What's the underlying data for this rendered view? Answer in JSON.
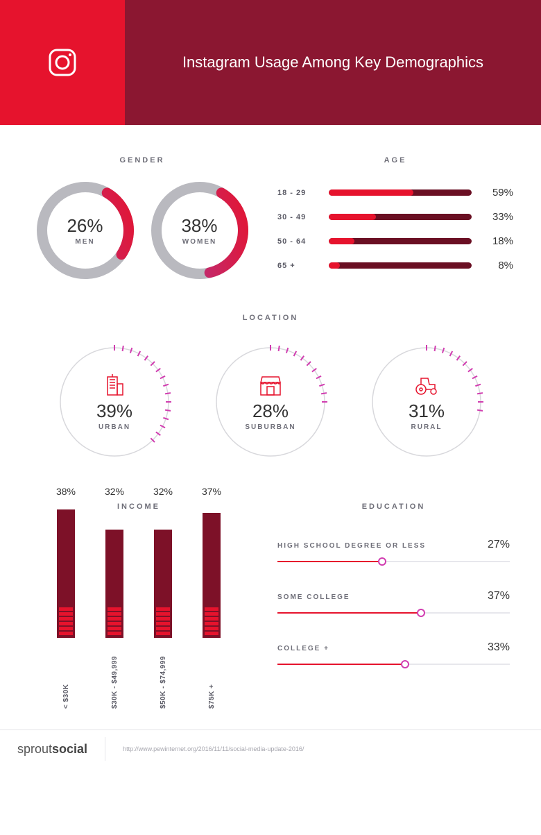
{
  "colors": {
    "header_icon_bg": "#e6132d",
    "header_title_bg": "#8b1731",
    "accent_red": "#e6132d",
    "accent_dark": "#6a0f23",
    "accent_pink": "#d13db0",
    "ring_track": "#b9b9bf",
    "loc_ring": "#d8d8dc",
    "text_muted": "#6e6e78",
    "bar_fill": "#7d1128"
  },
  "header": {
    "title": "Instagram Usage Among Key Demographics",
    "icon": "instagram-icon"
  },
  "gender": {
    "title": "GENDER",
    "items": [
      {
        "label": "MEN",
        "value": 26,
        "arc_start": "#a93a9a",
        "arc_end": "#e6132d"
      },
      {
        "label": "WOMEN",
        "value": 38,
        "arc_start": "#a93a9a",
        "arc_end": "#e6132d"
      }
    ],
    "ring_stroke": 15
  },
  "age": {
    "title": "AGE",
    "track_color": "#6a0f23",
    "fill_start": "#e6132d",
    "fill_end": "#d13db0",
    "rows": [
      {
        "label": "18 - 29",
        "value": 59
      },
      {
        "label": "30 - 49",
        "value": 33
      },
      {
        "label": "50 - 64",
        "value": 18
      },
      {
        "label": "65 +",
        "value": 8
      }
    ]
  },
  "location": {
    "title": "LOCATION",
    "tick_color": "#d13db0",
    "ring_color": "#d8d8dc",
    "icon_stroke": "#e6132d",
    "items": [
      {
        "label": "URBAN",
        "value": 39,
        "icon": "building-icon"
      },
      {
        "label": "SUBURBAN",
        "value": 28,
        "icon": "store-icon"
      },
      {
        "label": "RURAL",
        "value": 31,
        "icon": "tractor-icon"
      }
    ]
  },
  "income": {
    "title": "INCOME",
    "bar_color": "#7d1128",
    "seg_color": "#e6132d",
    "max_value": 40,
    "items": [
      {
        "label": "< $30K",
        "value": 38
      },
      {
        "label": "$30K - $49,999",
        "value": 32
      },
      {
        "label": "$50K - $74,999",
        "value": 32
      },
      {
        "label": "$75K +",
        "value": 37
      }
    ]
  },
  "education": {
    "title": "EDUCATION",
    "fill_color": "#e6132d",
    "handle_color": "#d13db0",
    "max_value": 60,
    "rows": [
      {
        "label": "HIGH SCHOOL DEGREE OR LESS",
        "value": 27
      },
      {
        "label": "SOME COLLEGE",
        "value": 37
      },
      {
        "label": "COLLEGE +",
        "value": 33
      }
    ]
  },
  "footer": {
    "brand_light": "sprout",
    "brand_bold": "social",
    "source": "http://www.pewinternet.org/2016/11/11/social-media-update-2016/"
  }
}
